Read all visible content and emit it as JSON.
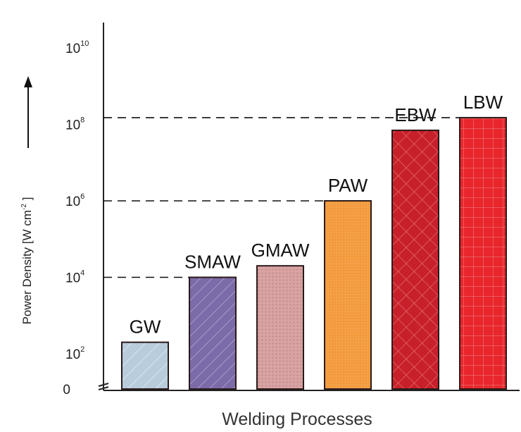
{
  "chart_data": {
    "type": "bar",
    "scale": "log",
    "categories": [
      "GW",
      "SMAW",
      "GMAW",
      "PAW",
      "EBW",
      "LBW"
    ],
    "values": [
      200,
      10000,
      20000,
      1000000,
      70000000,
      150000000
    ],
    "xlabel": "Welding Processes",
    "ylabel": {
      "text": "Power Density  [W cm",
      "exp": "-2",
      "close": " ]"
    },
    "y_ticks": [
      {
        "base": "0",
        "exp": ""
      },
      {
        "base": "10",
        "exp": "2"
      },
      {
        "base": "10",
        "exp": "4"
      },
      {
        "base": "10",
        "exp": "6"
      },
      {
        "base": "10",
        "exp": "8"
      },
      {
        "base": "10",
        "exp": "10"
      }
    ],
    "reference_lines": [
      10000,
      1000000,
      150000000
    ],
    "colors": {
      "GW": "#b8ccdc",
      "SMAW": "#7b6ba8",
      "GMAW": "#d9a3a3",
      "PAW": "#f39a3c",
      "EBW": "#c8202a",
      "LBW": "#e8262c"
    }
  }
}
